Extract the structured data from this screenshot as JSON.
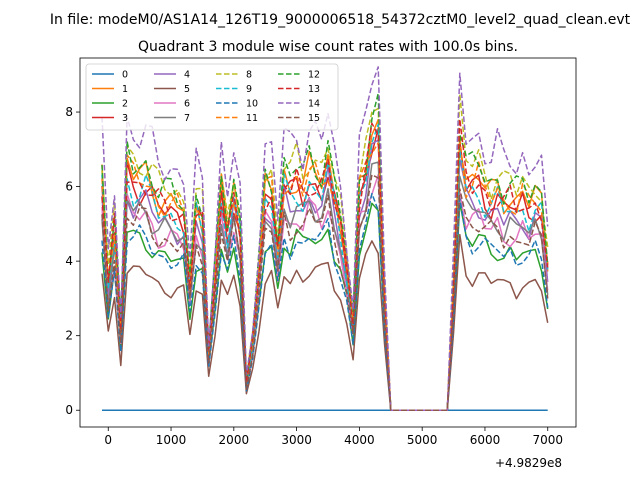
{
  "chart_data": {
    "type": "line",
    "suptitle": "In file: modeM0/AS1A14_126T19_9000006518_54372cztM0_level2_quad_clean.evt",
    "title": "Quadrant 3 module wise count rates with 100.0s bins.",
    "xlabel": "",
    "ylabel": "",
    "x_offset_label": "+4.9829e8",
    "xlim": [
      -450,
      7450
    ],
    "ylim": [
      -0.45,
      9.45
    ],
    "xticks": [
      0,
      1000,
      2000,
      3000,
      4000,
      5000,
      6000,
      7000
    ],
    "yticks": [
      0,
      2,
      4,
      6,
      8
    ],
    "legend_position": "top-left",
    "legend_columns": 4,
    "grid": false,
    "time_range": [
      -100,
      7000
    ],
    "bin_width": 100,
    "profile_nodes": [
      [
        -100,
        1.0
      ],
      [
        0,
        0.55
      ],
      [
        100,
        0.8
      ],
      [
        200,
        0.35
      ],
      [
        300,
        1.05
      ],
      [
        400,
        1.0
      ],
      [
        600,
        1.0
      ],
      [
        800,
        0.9
      ],
      [
        1000,
        0.88
      ],
      [
        1200,
        0.85
      ],
      [
        1300,
        0.55
      ],
      [
        1400,
        0.88
      ],
      [
        1500,
        0.82
      ],
      [
        1600,
        0.25
      ],
      [
        1700,
        0.58
      ],
      [
        1800,
        0.95
      ],
      [
        1900,
        0.78
      ],
      [
        2000,
        0.95
      ],
      [
        2100,
        0.78
      ],
      [
        2200,
        0.12
      ],
      [
        2300,
        0.3
      ],
      [
        2400,
        0.6
      ],
      [
        2500,
        0.95
      ],
      [
        2600,
        0.95
      ],
      [
        2700,
        0.7
      ],
      [
        2800,
        1.0
      ],
      [
        2900,
        0.95
      ],
      [
        3000,
        1.0
      ],
      [
        3100,
        0.95
      ],
      [
        3200,
        1.02
      ],
      [
        3300,
        1.0
      ],
      [
        3400,
        0.98
      ],
      [
        3500,
        1.08
      ],
      [
        3600,
        0.92
      ],
      [
        3700,
        0.8
      ],
      [
        3800,
        0.62
      ],
      [
        3900,
        0.38
      ],
      [
        4000,
        0.95
      ],
      [
        4100,
        1.05
      ],
      [
        4200,
        1.2
      ],
      [
        4300,
        1.22
      ],
      [
        4400,
        0.5
      ],
      [
        4500,
        0.0
      ],
      [
        5400,
        0.0
      ],
      [
        5500,
        0.55
      ],
      [
        5600,
        1.2
      ],
      [
        5700,
        1.0
      ],
      [
        5800,
        0.98
      ],
      [
        5900,
        1.0
      ],
      [
        6000,
        0.95
      ],
      [
        6100,
        0.92
      ],
      [
        6200,
        0.95
      ],
      [
        6300,
        0.9
      ],
      [
        6400,
        0.92
      ],
      [
        6500,
        0.88
      ],
      [
        6600,
        0.92
      ],
      [
        6700,
        0.88
      ],
      [
        6800,
        0.92
      ],
      [
        6900,
        0.88
      ],
      [
        7000,
        0.62
      ]
    ],
    "series": [
      {
        "name": "0",
        "level": 0.0,
        "color": "#1f77b4",
        "dash": "solid"
      },
      {
        "name": "1",
        "level": 6.3,
        "color": "#ff7f0e",
        "dash": "solid"
      },
      {
        "name": "2",
        "level": 4.6,
        "color": "#2ca02c",
        "dash": "solid"
      },
      {
        "name": "3",
        "level": 6.0,
        "color": "#d62728",
        "dash": "solid"
      },
      {
        "name": "4",
        "level": 5.6,
        "color": "#9467bd",
        "dash": "solid"
      },
      {
        "name": "5",
        "level": 3.7,
        "color": "#8c564b",
        "dash": "solid"
      },
      {
        "name": "6",
        "level": 5.2,
        "color": "#e377c2",
        "dash": "solid"
      },
      {
        "name": "7",
        "level": 5.4,
        "color": "#7f7f7f",
        "dash": "solid"
      },
      {
        "name": "8",
        "level": 6.7,
        "color": "#bcbd22",
        "dash": "dashed"
      },
      {
        "name": "9",
        "level": 5.9,
        "color": "#17becf",
        "dash": "dashed"
      },
      {
        "name": "10",
        "level": 4.6,
        "color": "#1f77b4",
        "dash": "dashed"
      },
      {
        "name": "11",
        "level": 6.2,
        "color": "#ff7f0e",
        "dash": "dashed"
      },
      {
        "name": "12",
        "level": 6.6,
        "color": "#2ca02c",
        "dash": "dashed"
      },
      {
        "name": "13",
        "level": 6.1,
        "color": "#d62728",
        "dash": "dashed"
      },
      {
        "name": "14",
        "level": 7.4,
        "color": "#9467bd",
        "dash": "dashed"
      },
      {
        "name": "15",
        "level": 5.1,
        "color": "#8c564b",
        "dash": "dashed"
      }
    ]
  }
}
